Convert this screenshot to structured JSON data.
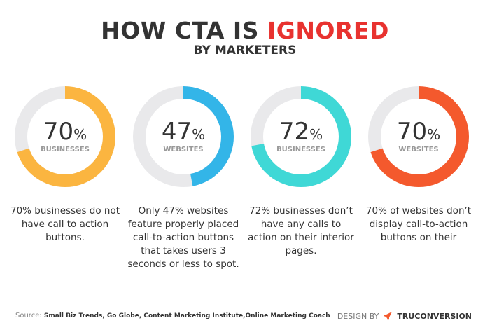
{
  "title": {
    "part1": "HOW CTA IS ",
    "highlight": "IGNORED",
    "subtitle": "BY MARKETERS"
  },
  "colors": {
    "title_highlight": "#e8322f",
    "track": "#e9e9eb"
  },
  "chart_data": {
    "type": "pie",
    "variant": "donut",
    "items": [
      {
        "value": 70,
        "unit": "%",
        "label": "BUSINESSES",
        "color": "#fbb540",
        "description": "70% businesses do not have call to action buttons."
      },
      {
        "value": 47,
        "unit": "%",
        "label": "WEBSITES",
        "color": "#33b5e8",
        "description": "Only 47% websites feature properly placed call-to-action buttons that takes users 3 seconds or less to spot."
      },
      {
        "value": 72,
        "unit": "%",
        "label": "BUSINESSES",
        "color": "#3fd8d6",
        "description": "72% businesses don’t have any calls to action on their interior pages."
      },
      {
        "value": 70,
        "unit": "%",
        "label": "WEBSITES",
        "color": "#f4592d",
        "description": "70% of websites don’t display call-to-action buttons on their"
      }
    ]
  },
  "footer": {
    "source_label": "Source:",
    "sources": "Small Biz Trends, Go Globe, Content Marketing Institute,Online Marketing Coach",
    "design_by": "DESIGN BY",
    "brand": "TRUCONVERSION",
    "brand_icon": "rocket-icon",
    "brand_color": "#f4592d"
  }
}
